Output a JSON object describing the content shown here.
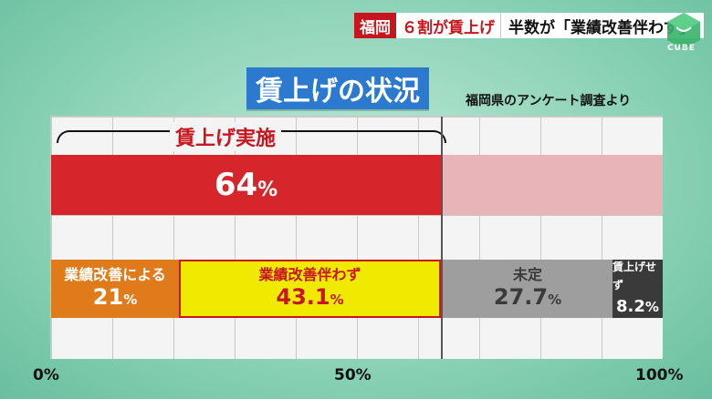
{
  "ticker": {
    "location": "福岡",
    "headline": "６割が賃上げ",
    "subheadline": "半数が「業績改善伴わず」"
  },
  "logo": {
    "text": "CUBE",
    "color": "#3bb26a"
  },
  "title": "賃上げの状況",
  "source": "福岡県のアンケート調査より",
  "chart_data": {
    "type": "bar",
    "orientation": "horizontal-stacked",
    "grid": true,
    "xlim": [
      0,
      100
    ],
    "x_ticks": [
      "0%",
      "50%",
      "100%"
    ],
    "bars": [
      {
        "bracket_label": "賃上げ実施",
        "segments": [
          {
            "label": "",
            "value": 64,
            "display": "64",
            "unit": "%",
            "color": "#d6252b"
          },
          {
            "label": "",
            "value": 36,
            "display": "",
            "unit": "",
            "color": "#e8b4b8"
          }
        ]
      },
      {
        "segments": [
          {
            "label": "業績改善による",
            "value": 21,
            "display": "21",
            "unit": "%",
            "color": "#e07b1c"
          },
          {
            "label": "業績改善伴わず",
            "value": 43.1,
            "display": "43.1",
            "unit": "%",
            "color": "#f0ea00"
          },
          {
            "label": "未定",
            "value": 27.7,
            "display": "27.7",
            "unit": "%",
            "color": "#9e9e9e"
          },
          {
            "label": "賃上げせず",
            "value": 8.2,
            "display": "8.2",
            "unit": "%",
            "color": "#3a3a3a"
          }
        ]
      }
    ]
  }
}
